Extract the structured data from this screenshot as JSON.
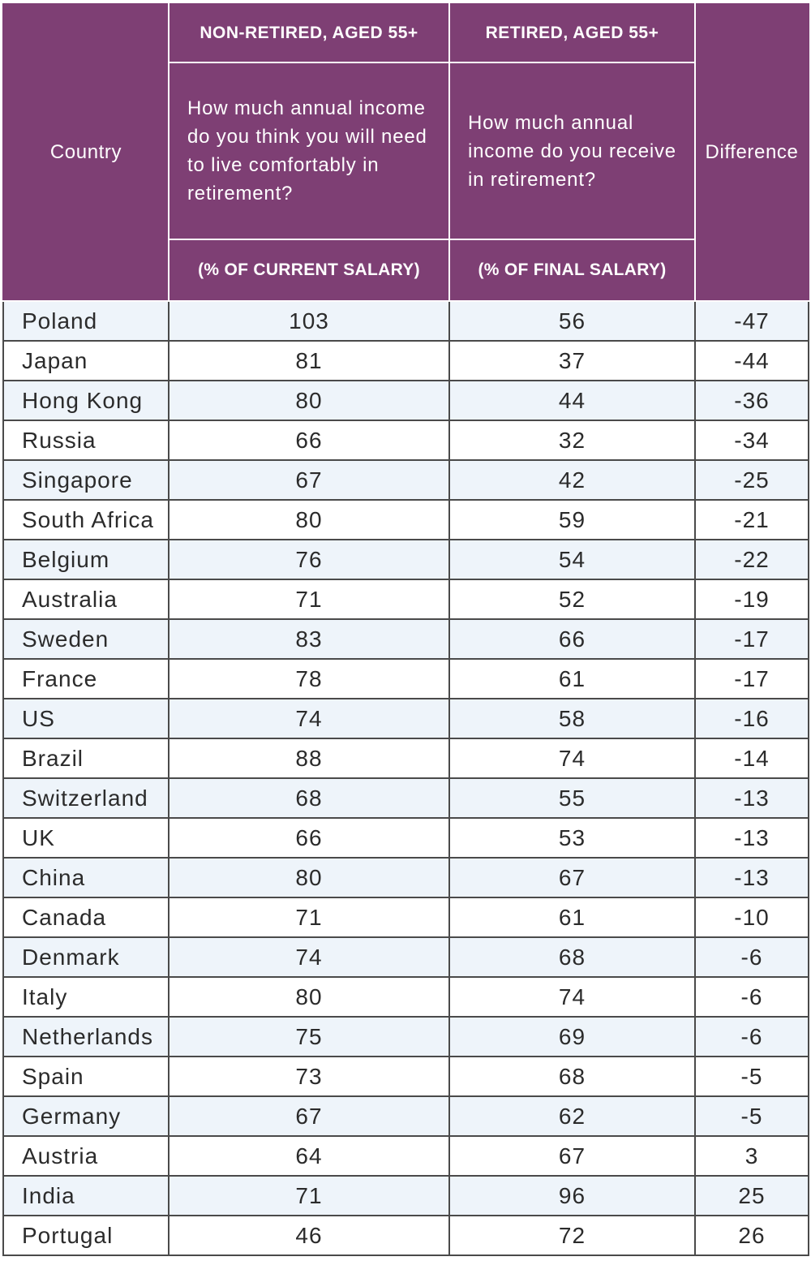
{
  "chart_data": {
    "type": "table",
    "headers": {
      "country": "Country",
      "non_retired_group": "NON-RETIRED, AGED 55+",
      "retired_group": "RETIRED, AGED 55+",
      "non_retired_question": "How much annual income do you think you will need to live comfortably in retirement?",
      "retired_question": "How much annual income do you receive in retirement?",
      "non_retired_unit": "(% OF CURRENT SALARY)",
      "retired_unit": "(% OF FINAL SALARY)",
      "difference": "Difference"
    },
    "rows": [
      {
        "country": "Poland",
        "needed": "103",
        "received": "56",
        "difference": "-47"
      },
      {
        "country": "Japan",
        "needed": "81",
        "received": "37",
        "difference": "-44"
      },
      {
        "country": "Hong Kong",
        "needed": "80",
        "received": "44",
        "difference": "-36"
      },
      {
        "country": "Russia",
        "needed": "66",
        "received": "32",
        "difference": "-34"
      },
      {
        "country": "Singapore",
        "needed": "67",
        "received": "42",
        "difference": "-25"
      },
      {
        "country": "South Africa",
        "needed": "80",
        "received": "59",
        "difference": "-21"
      },
      {
        "country": "Belgium",
        "needed": "76",
        "received": "54",
        "difference": "-22"
      },
      {
        "country": "Australia",
        "needed": "71",
        "received": "52",
        "difference": "-19"
      },
      {
        "country": "Sweden",
        "needed": "83",
        "received": "66",
        "difference": "-17"
      },
      {
        "country": "France",
        "needed": "78",
        "received": "61",
        "difference": "-17"
      },
      {
        "country": "US",
        "needed": "74",
        "received": "58",
        "difference": "-16"
      },
      {
        "country": "Brazil",
        "needed": "88",
        "received": "74",
        "difference": "-14"
      },
      {
        "country": "Switzerland",
        "needed": "68",
        "received": "55",
        "difference": "-13"
      },
      {
        "country": "UK",
        "needed": "66",
        "received": "53",
        "difference": "-13"
      },
      {
        "country": "China",
        "needed": "80",
        "received": "67",
        "difference": "-13"
      },
      {
        "country": "Canada",
        "needed": "71",
        "received": "61",
        "difference": "-10"
      },
      {
        "country": "Denmark",
        "needed": "74",
        "received": "68",
        "difference": "-6"
      },
      {
        "country": "Italy",
        "needed": "80",
        "received": "74",
        "difference": "-6"
      },
      {
        "country": "Netherlands",
        "needed": "75",
        "received": "69",
        "difference": "-6"
      },
      {
        "country": "Spain",
        "needed": "73",
        "received": "68",
        "difference": "-5"
      },
      {
        "country": "Germany",
        "needed": "67",
        "received": "62",
        "difference": "-5"
      },
      {
        "country": "Austria",
        "needed": "64",
        "received": "67",
        "difference": "3"
      },
      {
        "country": "India",
        "needed": "71",
        "received": "96",
        "difference": "25"
      },
      {
        "country": "Portugal",
        "needed": "46",
        "received": "72",
        "difference": "26"
      }
    ]
  },
  "colors": {
    "header_background": "#7e3f74",
    "header_text": "#ffffff",
    "row_stripe": "#eef4fa",
    "row_plain": "#ffffff"
  }
}
